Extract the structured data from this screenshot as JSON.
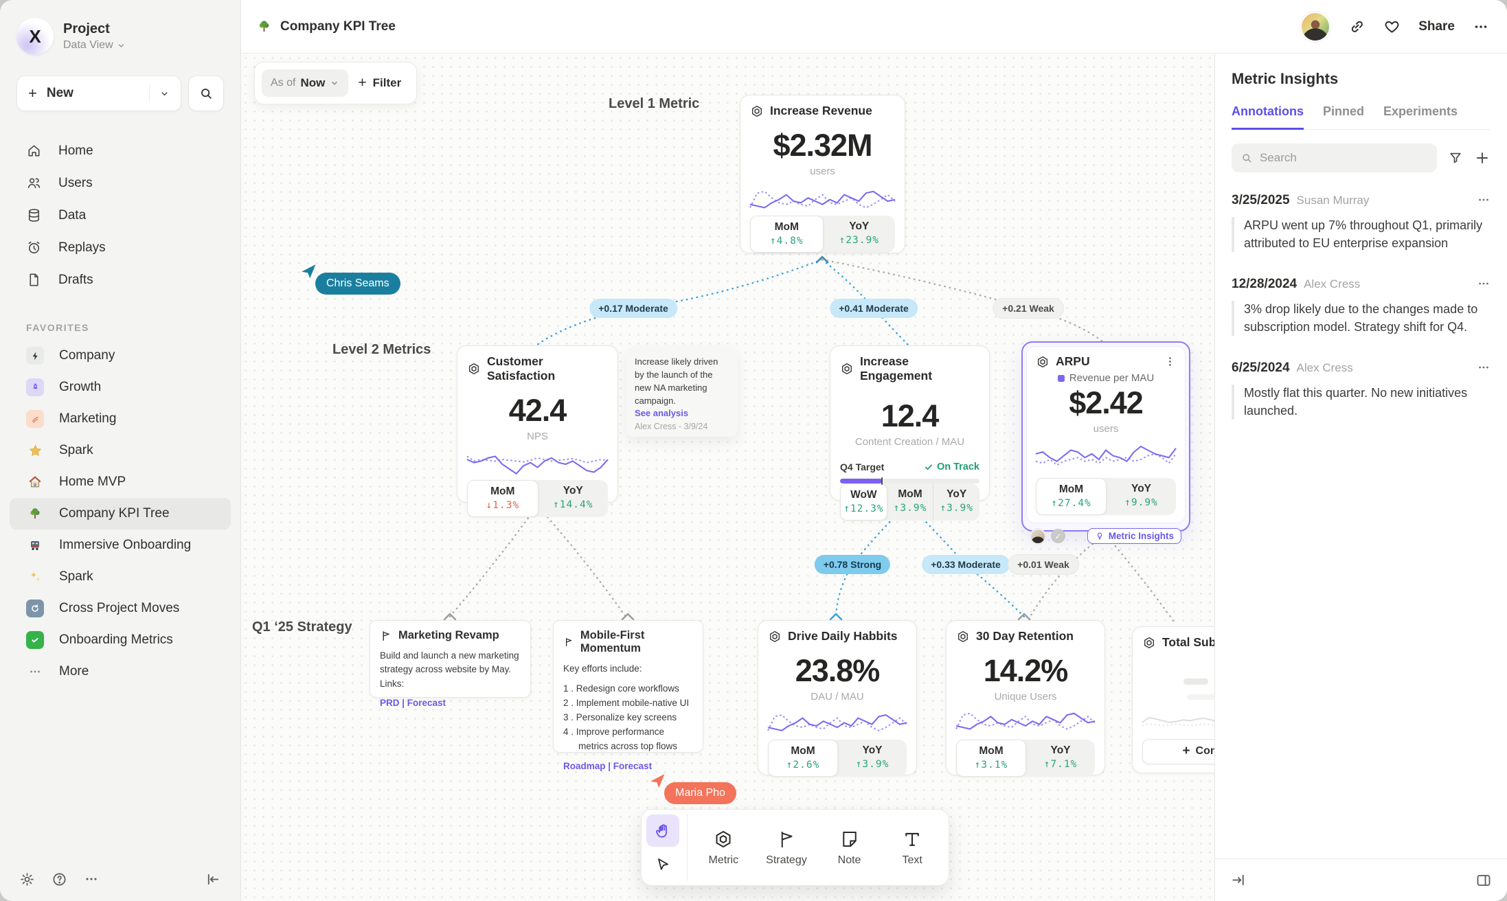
{
  "colors": {
    "accent": "#6a58e8",
    "positive": "#2aa37e",
    "negative": "#e8654d",
    "edge_blue": "#3ba5da",
    "edge_weak": "#f1f1ef",
    "cursor_teal": "#1a7f9f",
    "cursor_coral": "#f3735b",
    "selection_purple": "#8d7cf2"
  },
  "sidebar": {
    "project": "Project",
    "view": "Data View",
    "new_label": "New",
    "nav": [
      "Home",
      "Users",
      "Data",
      "Replays",
      "Drafts"
    ],
    "favorites_label": "FAVORITES",
    "favorites": [
      {
        "label": "Company"
      },
      {
        "label": "Growth"
      },
      {
        "label": "Marketing"
      },
      {
        "label": "Spark"
      },
      {
        "label": "Home MVP"
      },
      {
        "label": "Company KPI Tree"
      },
      {
        "label": "Immersive Onboarding"
      },
      {
        "label": "Spark"
      },
      {
        "label": "Cross Project Moves"
      },
      {
        "label": "Onboarding Metrics"
      }
    ],
    "more": "More"
  },
  "topbar": {
    "title": "Company KPI Tree",
    "share": "Share"
  },
  "canvas": {
    "asof_prefix": "As of",
    "asof_value": "Now",
    "filter_label": "Filter",
    "labels": {
      "l1": "Level 1 Metric",
      "l2": "Level 2 Metrics",
      "strategy": "Q1 ‘25 Strategy"
    },
    "edges": [
      "+0.17 Moderate",
      "+0.41 Moderate",
      "+0.21 Weak",
      "+0.78 Strong",
      "+0.33 Moderate",
      "+0.01 Weak"
    ],
    "cursors": [
      {
        "name": "Chris Seams"
      },
      {
        "name": "Maria Pho"
      }
    ]
  },
  "cards": {
    "revenue": {
      "title": "Increase Revenue",
      "value": "$2.32M",
      "unit": "users",
      "stats": [
        {
          "label": "MoM",
          "arrow": "↑",
          "value": "4.8%"
        },
        {
          "label": "YoY",
          "arrow": "↑",
          "value": "23.9%"
        }
      ]
    },
    "custsat": {
      "title": "Customer Satisfaction",
      "value": "42.4",
      "unit": "NPS",
      "stats": [
        {
          "label": "MoM",
          "arrow": "↓",
          "value": "1.3%"
        },
        {
          "label": "YoY",
          "arrow": "↑",
          "value": "14.4%"
        }
      ]
    },
    "note": {
      "text": "Increase likely driven by the launch of the new NA marketing campaign.",
      "link": "See analysis",
      "byline": "Alex Cress - 3/9/24"
    },
    "engagement": {
      "title": "Increase Engagement",
      "value": "12.4",
      "unit": "Content Creation / MAU",
      "target": {
        "label": "Q4 Target",
        "status": "On Track",
        "progress": 30
      },
      "stats": [
        {
          "label": "WoW",
          "arrow": "↑",
          "value": "12.3%"
        },
        {
          "label": "MoM",
          "arrow": "↑",
          "value": "3.9%"
        },
        {
          "label": "YoY",
          "arrow": "↑",
          "value": "3.9%"
        }
      ]
    },
    "arpu": {
      "title": "ARPU",
      "legend": "Revenue per MAU",
      "value": "$2.42",
      "unit": "users",
      "insights_label": "Metric Insights",
      "stats": [
        {
          "label": "MoM",
          "arrow": "↑",
          "value": "27.4%"
        },
        {
          "label": "YoY",
          "arrow": "↑",
          "value": "9.9%"
        }
      ]
    },
    "marketing": {
      "title": "Marketing Revamp",
      "body": "Build and launch a new marketing strategy across website by May. Links:",
      "links": "PRD | Forecast"
    },
    "mobile": {
      "title": "Mobile-First Momentum",
      "intro": "Key efforts include:",
      "items": [
        "1 . Redesign core workflows",
        "2 . Implement mobile-native UI",
        "3 . Personalize key screens",
        "4 . Improve performance metrics across top flows"
      ],
      "links": "Roadmap | Forecast"
    },
    "drive": {
      "title": "Drive Daily Habbits",
      "value": "23.8%",
      "unit": "DAU / MAU",
      "stats": [
        {
          "label": "MoM",
          "arrow": "↑",
          "value": "2.6%"
        },
        {
          "label": "YoY",
          "arrow": "↑",
          "value": "3.9%"
        }
      ]
    },
    "retention": {
      "title": "30 Day Retention",
      "value": "14.2%",
      "unit": "Unique Users",
      "stats": [
        {
          "label": "MoM",
          "arrow": "↑",
          "value": "3.1%"
        },
        {
          "label": "YoY",
          "arrow": "↑",
          "value": "7.1%"
        }
      ]
    },
    "subs": {
      "title": "Total Subscriptions",
      "connect": "Connect"
    }
  },
  "insights": {
    "title": "Metric Insights",
    "tabs": [
      "Annotations",
      "Pinned",
      "Experiments"
    ],
    "search_placeholder": "Search",
    "annotations": [
      {
        "date": "3/25/2025",
        "author": "Susan Murray",
        "text": "ARPU went up 7% throughout Q1, primarily attributed to EU enterprise expansion"
      },
      {
        "date": "12/28/2024",
        "author": "Alex Cress",
        "text": "3% drop likely due to the changes made to subscription model. Strategy shift for Q4."
      },
      {
        "date": "6/25/2024",
        "author": "Alex Cress",
        "text": "Mostly flat this quarter. No new initiatives launched."
      }
    ]
  },
  "toolbar": {
    "tools": [
      "Metric",
      "Strategy",
      "Note",
      "Text"
    ]
  },
  "sparks": {
    "revenue": {
      "solid": [
        26,
        28,
        30,
        24,
        20,
        14,
        22,
        24,
        18,
        22,
        26,
        20,
        24,
        14,
        18,
        22,
        12,
        10,
        16,
        22,
        20
      ],
      "dotted": [
        30,
        12,
        10,
        18,
        24,
        26,
        22,
        26,
        28,
        20,
        14,
        24,
        26,
        22,
        18,
        26,
        30,
        26,
        20,
        14,
        22
      ]
    },
    "custsat": {
      "solid": [
        14,
        18,
        16,
        12,
        10,
        20,
        26,
        32,
        22,
        18,
        24,
        16,
        12,
        18,
        20,
        16,
        22,
        28,
        30,
        24,
        14
      ],
      "dotted": [
        10,
        16,
        14,
        15,
        16,
        14,
        15,
        16,
        17,
        15,
        12,
        14,
        16,
        15,
        14,
        13,
        15,
        18,
        16,
        14,
        15
      ]
    },
    "arpu": {
      "solid": [
        14,
        12,
        18,
        22,
        16,
        10,
        12,
        18,
        14,
        20,
        10,
        16,
        18,
        22,
        12,
        6,
        10,
        14,
        16,
        18,
        8
      ],
      "dotted": [
        22,
        24,
        20,
        26,
        22,
        20,
        18,
        22,
        20,
        24,
        18,
        22,
        20,
        18,
        22,
        20,
        16,
        14,
        18,
        24,
        14
      ]
    },
    "drive": {
      "solid": [
        24,
        26,
        28,
        22,
        18,
        12,
        20,
        22,
        16,
        20,
        24,
        18,
        22,
        12,
        16,
        20,
        10,
        8,
        14,
        20,
        18
      ],
      "dotted": [
        28,
        10,
        8,
        16,
        22,
        24,
        20,
        24,
        26,
        18,
        12,
        22,
        24,
        20,
        16,
        24,
        28,
        24,
        18,
        12,
        20
      ]
    },
    "retention": {
      "solid": [
        22,
        24,
        26,
        20,
        16,
        10,
        18,
        20,
        14,
        18,
        22,
        16,
        20,
        10,
        14,
        18,
        8,
        6,
        12,
        18,
        16
      ],
      "dotted": [
        26,
        8,
        6,
        14,
        20,
        22,
        18,
        22,
        24,
        16,
        10,
        20,
        22,
        18,
        14,
        22,
        26,
        22,
        16,
        10,
        18
      ]
    },
    "subs": {
      "solid": [
        20,
        14,
        16,
        18,
        20,
        19,
        17,
        18,
        16,
        15,
        17,
        19,
        18,
        16,
        18,
        20,
        17,
        15,
        18,
        16,
        19
      ],
      "dotted": [
        24,
        22,
        23,
        24,
        23,
        22,
        23,
        24,
        23,
        22,
        23,
        24,
        23,
        22,
        23,
        24,
        23,
        22,
        23,
        24,
        23
      ]
    }
  }
}
